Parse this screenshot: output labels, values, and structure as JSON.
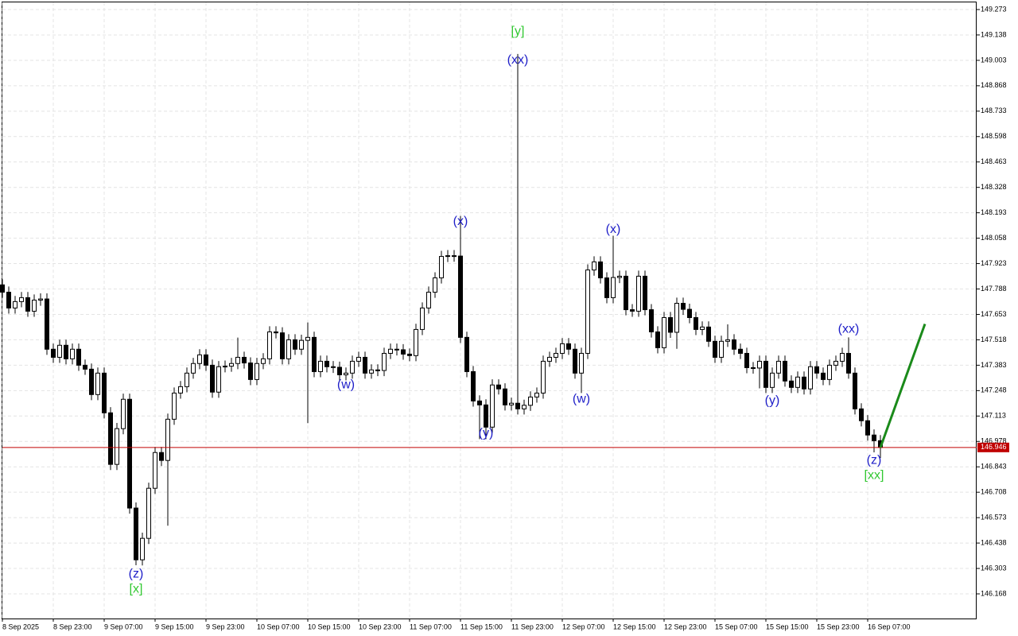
{
  "chart_data": {
    "type": "candlestick",
    "categories": [
      "8 Sep 2025",
      null,
      null,
      null,
      null,
      null,
      null,
      null,
      "8 Sep 23:00",
      null,
      null,
      null,
      null,
      null,
      null,
      null,
      "9 Sep 07:00",
      null,
      null,
      null,
      null,
      null,
      null,
      null,
      "9 Sep 15:00",
      null,
      null,
      null,
      null,
      null,
      null,
      null,
      "9 Sep 23:00",
      null,
      null,
      null,
      null,
      null,
      null,
      null,
      "10 Sep 07:00",
      null,
      null,
      null,
      null,
      null,
      null,
      null,
      "10 Sep 15:00",
      null,
      null,
      null,
      null,
      null,
      null,
      null,
      "10 Sep 23:00",
      null,
      null,
      null,
      null,
      null,
      null,
      null,
      "11 Sep 07:00",
      null,
      null,
      null,
      null,
      null,
      null,
      null,
      "11 Sep 15:00",
      null,
      null,
      null,
      null,
      null,
      null,
      null,
      "11 Sep 23:00",
      null,
      null,
      null,
      null,
      null,
      null,
      null,
      "12 Sep 07:00",
      null,
      null,
      null,
      null,
      null,
      null,
      null,
      "12 Sep 15:00",
      null,
      null,
      null,
      null,
      null,
      null,
      null,
      "12 Sep 23:00",
      null,
      null,
      null,
      null,
      null,
      null,
      null,
      "15 Sep 07:00",
      null,
      null,
      null,
      null,
      null,
      null,
      null,
      "15 Sep 15:00",
      null,
      null,
      null,
      null,
      null,
      null,
      null,
      "15 Sep 23:00",
      null,
      null,
      null,
      null,
      null,
      null,
      null,
      "16 Sep 07:00",
      null,
      null
    ],
    "open": [
      147.81,
      147.771,
      147.687,
      147.721,
      147.742,
      147.67,
      147.729,
      147.735,
      147.468,
      147.425,
      147.489,
      147.417,
      147.468,
      147.383,
      147.362,
      147.227,
      147.341,
      147.13,
      146.856,
      147.046,
      147.202,
      146.624,
      146.349,
      146.463,
      146.729,
      146.919,
      146.877,
      147.096,
      147.235,
      147.269,
      147.341,
      147.392,
      147.438,
      147.383,
      147.24,
      147.375,
      147.378,
      147.392,
      147.425,
      147.395,
      147.307,
      147.392,
      147.417,
      147.56,
      147.555,
      147.417,
      147.518,
      147.468,
      147.515,
      147.531,
      147.349,
      147.404,
      147.375,
      147.372,
      147.332,
      147.341,
      147.404,
      147.425,
      147.341,
      147.358,
      147.355,
      147.446,
      147.468,
      147.465,
      147.442,
      147.434,
      147.573,
      147.687,
      147.771,
      147.847,
      147.961,
      147.965,
      147.963,
      147.531,
      147.349,
      147.193,
      147.172,
      147.054,
      147.278,
      147.257,
      147.172,
      147.181,
      147.151,
      147.17,
      147.214,
      147.235,
      147.404,
      147.425,
      147.446,
      147.497,
      147.468,
      147.341,
      147.446,
      147.889,
      147.932,
      147.847,
      147.742,
      147.849,
      147.856,
      147.678,
      147.67,
      147.856,
      147.678,
      147.56,
      147.476,
      147.636,
      147.558,
      147.712,
      147.68,
      147.636,
      147.573,
      147.586,
      147.51,
      147.425,
      147.51,
      147.518,
      147.468,
      147.446,
      147.37,
      147.368,
      147.404,
      147.265,
      147.341,
      147.404,
      147.299,
      147.265,
      147.32,
      147.257,
      147.375,
      147.341,
      147.307,
      147.383,
      147.404,
      147.446,
      147.341,
      147.151,
      147.088,
      147.012,
      146.982
    ],
    "high": [
      147.84,
      147.801,
      147.751,
      147.772,
      147.772,
      147.759,
      147.765,
      147.765,
      147.498,
      147.519,
      147.519,
      147.498,
      147.498,
      147.413,
      147.392,
      147.371,
      147.371,
      147.16,
      147.076,
      147.232,
      147.232,
      146.654,
      146.493,
      146.759,
      146.949,
      146.949,
      147.126,
      147.265,
      147.299,
      147.371,
      147.422,
      147.468,
      147.468,
      147.413,
      147.405,
      147.408,
      147.422,
      147.53,
      147.455,
      147.425,
      147.422,
      147.447,
      147.59,
      147.59,
      147.585,
      147.548,
      147.548,
      147.545,
      147.61,
      147.561,
      147.434,
      147.434,
      147.405,
      147.402,
      147.371,
      147.434,
      147.455,
      147.455,
      147.388,
      147.388,
      147.476,
      147.498,
      147.498,
      147.495,
      147.472,
      147.603,
      147.717,
      147.801,
      147.877,
      147.991,
      147.995,
      147.995,
      148.176,
      147.561,
      147.379,
      147.223,
      147.202,
      147.308,
      147.308,
      147.287,
      147.211,
      149.037,
      147.2,
      147.244,
      147.265,
      147.434,
      147.455,
      147.476,
      147.527,
      147.527,
      147.498,
      147.476,
      147.919,
      147.962,
      147.962,
      147.877,
      148.071,
      147.886,
      147.886,
      147.708,
      147.886,
      147.886,
      147.708,
      147.59,
      147.666,
      147.666,
      147.742,
      147.742,
      147.71,
      147.666,
      147.616,
      147.616,
      147.54,
      147.54,
      147.6,
      147.548,
      147.498,
      147.476,
      147.4,
      147.434,
      147.434,
      147.371,
      147.434,
      147.434,
      147.329,
      147.35,
      147.35,
      147.405,
      147.405,
      147.371,
      147.413,
      147.434,
      147.476,
      147.531,
      147.371,
      147.181,
      147.118,
      147.042,
      147.012
    ],
    "low": [
      147.741,
      147.657,
      147.657,
      147.691,
      147.64,
      147.64,
      147.699,
      147.438,
      147.395,
      147.395,
      147.387,
      147.387,
      147.353,
      147.332,
      147.197,
      147.197,
      147.1,
      146.826,
      146.826,
      147.016,
      146.594,
      146.32,
      146.319,
      146.433,
      146.699,
      146.847,
      146.53,
      147.066,
      147.205,
      147.239,
      147.311,
      147.362,
      147.353,
      147.21,
      147.21,
      147.345,
      147.348,
      147.362,
      147.365,
      147.277,
      147.277,
      147.362,
      147.387,
      147.525,
      147.387,
      147.387,
      147.438,
      147.438,
      147.075,
      147.319,
      147.319,
      147.345,
      147.342,
      147.302,
      147.302,
      147.311,
      147.374,
      147.311,
      147.311,
      147.325,
      147.325,
      147.416,
      147.435,
      147.412,
      147.404,
      147.404,
      147.543,
      147.657,
      147.741,
      147.817,
      147.931,
      147.933,
      147.501,
      147.319,
      147.163,
      146.99,
      146.99,
      147.024,
      147.227,
      147.142,
      147.142,
      147.121,
      147.121,
      147.14,
      147.184,
      147.205,
      147.374,
      147.395,
      147.416,
      147.438,
      147.311,
      147.235,
      147.416,
      147.859,
      147.817,
      147.712,
      147.712,
      147.819,
      147.648,
      147.64,
      147.64,
      147.648,
      147.53,
      147.446,
      147.446,
      147.528,
      147.47,
      147.65,
      147.606,
      147.543,
      147.543,
      147.48,
      147.395,
      147.395,
      147.48,
      147.438,
      147.416,
      147.34,
      147.338,
      147.26,
      147.235,
      147.235,
      147.311,
      147.269,
      147.235,
      147.235,
      147.227,
      147.227,
      147.311,
      147.277,
      147.277,
      147.353,
      147.374,
      147.311,
      147.121,
      147.058,
      146.982,
      146.92,
      146.89
    ],
    "close": [
      147.771,
      147.687,
      147.721,
      147.742,
      147.67,
      147.729,
      147.735,
      147.468,
      147.425,
      147.489,
      147.417,
      147.468,
      147.383,
      147.362,
      147.227,
      147.341,
      147.13,
      146.856,
      147.046,
      147.202,
      146.624,
      146.349,
      146.463,
      146.729,
      146.919,
      146.877,
      147.096,
      147.235,
      147.269,
      147.341,
      147.392,
      147.438,
      147.383,
      147.24,
      147.375,
      147.378,
      147.392,
      147.425,
      147.395,
      147.307,
      147.392,
      147.417,
      147.56,
      147.555,
      147.417,
      147.518,
      147.468,
      147.515,
      147.531,
      147.349,
      147.404,
      147.375,
      147.372,
      147.332,
      147.341,
      147.404,
      147.425,
      147.341,
      147.358,
      147.355,
      147.446,
      147.468,
      147.465,
      147.442,
      147.434,
      147.573,
      147.687,
      147.771,
      147.847,
      147.961,
      147.965,
      147.963,
      147.531,
      147.349,
      147.193,
      147.172,
      147.054,
      147.278,
      147.257,
      147.172,
      147.181,
      147.151,
      147.17,
      147.214,
      147.235,
      147.404,
      147.425,
      147.446,
      147.497,
      147.468,
      147.341,
      147.446,
      147.889,
      147.932,
      147.847,
      147.742,
      147.849,
      147.856,
      147.678,
      147.67,
      147.856,
      147.678,
      147.56,
      147.476,
      147.636,
      147.558,
      147.712,
      147.68,
      147.636,
      147.573,
      147.586,
      147.51,
      147.425,
      147.51,
      147.518,
      147.468,
      147.446,
      147.37,
      147.368,
      147.404,
      147.265,
      147.341,
      147.404,
      147.299,
      147.265,
      147.32,
      147.257,
      147.375,
      147.341,
      147.307,
      147.383,
      147.404,
      147.446,
      147.341,
      147.151,
      147.088,
      147.012,
      146.982,
      146.946
    ],
    "up_color": "#ffffff",
    "down_color": "#000000",
    "ylim": [
      146.037,
      149.311
    ],
    "yticks": [
      149.273,
      149.138,
      149.003,
      148.868,
      148.733,
      148.598,
      148.463,
      148.328,
      148.193,
      148.058,
      147.923,
      147.788,
      147.653,
      147.518,
      147.383,
      147.248,
      147.113,
      146.978,
      146.843,
      146.708,
      146.573,
      146.438,
      146.303,
      146.168
    ],
    "grid": true,
    "current_price": {
      "value": 146.946,
      "color": "#c00000"
    },
    "projection": {
      "x": [
        138,
        145
      ],
      "y": [
        146.946,
        147.602
      ],
      "color": "#1a8a1a"
    },
    "annotations": [
      {
        "text": "[y]",
        "x": 81,
        "y": 149.155,
        "color": "#32c832"
      },
      {
        "text": "(xx)",
        "x": 81,
        "y": 149.003,
        "color": "#1e1ec8"
      },
      {
        "text": "(x)",
        "x": 72,
        "y": 148.146,
        "color": "#1e1ec8"
      },
      {
        "text": "(w)",
        "x": 54,
        "y": 147.277,
        "color": "#1e1ec8"
      },
      {
        "text": "(y)",
        "x": 76,
        "y": 147.02,
        "color": "#1e1ec8"
      },
      {
        "text": "(x)",
        "x": 96,
        "y": 148.104,
        "color": "#1e1ec8"
      },
      {
        "text": "(w)",
        "x": 91,
        "y": 147.201,
        "color": "#1e1ec8"
      },
      {
        "text": "(y)",
        "x": 121,
        "y": 147.193,
        "color": "#1e1ec8"
      },
      {
        "text": "(xx)",
        "x": 133,
        "y": 147.573,
        "color": "#1e1ec8"
      },
      {
        "text": "(z)",
        "x": 137,
        "y": 146.876,
        "color": "#1e1ec8"
      },
      {
        "text": "[xx]",
        "x": 137,
        "y": 146.796,
        "color": "#32c832"
      },
      {
        "text": "(z)",
        "x": 21,
        "y": 146.273,
        "color": "#1e1ec8"
      },
      {
        "text": "[x]",
        "x": 21,
        "y": 146.193,
        "color": "#32c832"
      }
    ]
  }
}
